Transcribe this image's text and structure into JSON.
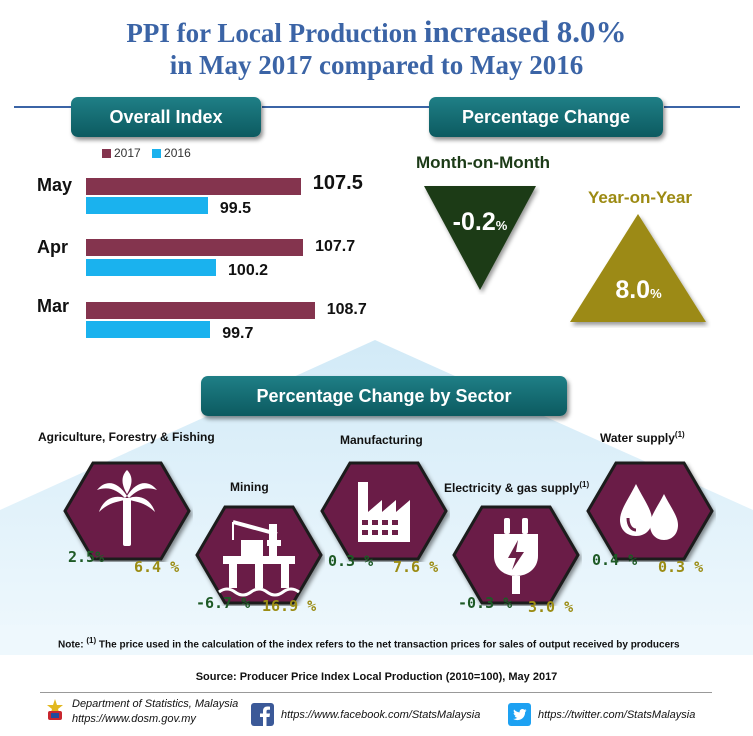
{
  "title": {
    "line1_prefix": "PPI for Local Production ",
    "line1_emph": "increased 8.0%",
    "line2": "in May 2017 compared to May 2016"
  },
  "overall_banner": "Overall Index",
  "pct_banner": "Percentage Change",
  "sector_banner": "Percentage Change by Sector",
  "mom_label": "Month-on-Month",
  "yoy_label": "Year-on-Year",
  "colors": {
    "y2017": "#84344e",
    "y2016": "#1ab2ee",
    "mom_triangle": "#1c3b17",
    "yoy_triangle": "#9c8a12",
    "hexagon": "#6b1f47",
    "banner": "#1a767c"
  },
  "chart_data": [
    {
      "type": "bar",
      "title": "Overall Index",
      "orientation": "horizontal",
      "categories": [
        "May",
        "Apr",
        "Mar"
      ],
      "series": [
        {
          "name": "2017",
          "values": [
            107.5,
            107.7,
            108.7
          ]
        },
        {
          "name": "2016",
          "values": [
            99.5,
            100.2,
            99.7
          ]
        }
      ],
      "value_labels": {
        "2017": [
          "107.5",
          "107.7",
          "108.7"
        ],
        "2016": [
          "99.5",
          "100.2",
          "99.7"
        ]
      },
      "legend": [
        "2017",
        "2016"
      ],
      "legend_position": "top-left",
      "xlim": [
        0,
        115
      ]
    },
    {
      "type": "table",
      "title": "Percentage Change",
      "items": [
        {
          "label": "Month-on-Month",
          "value": -0.2,
          "display": "-0.2",
          "unit": "%"
        },
        {
          "label": "Year-on-Year",
          "value": 8.0,
          "display": "8.0",
          "unit": "%"
        }
      ]
    },
    {
      "type": "table",
      "title": "Percentage Change by Sector",
      "sectors": [
        {
          "name": "Agriculture, Forestry & Fishing",
          "icon": "palm-tree-icon",
          "mom": "2.5%",
          "yoy": "6.4 %"
        },
        {
          "name": "Mining",
          "icon": "oil-rig-icon",
          "mom": "-6.7 %",
          "yoy": "16.9 %"
        },
        {
          "name": "Manufacturing",
          "icon": "factory-icon",
          "mom": "0.3 %",
          "yoy": "7.6 %"
        },
        {
          "name": "Electricity & gas supply",
          "note_marker": "(1)",
          "icon": "plug-icon",
          "mom": "-0.3 %",
          "yoy": "3.0 %"
        },
        {
          "name": "Water supply",
          "note_marker": "(1)",
          "icon": "water-drops-icon",
          "mom": "0.4 %",
          "yoy": "0.3 %"
        }
      ]
    }
  ],
  "note": {
    "prefix": "Note: ",
    "marker": "(1)",
    "text": " The price used in the calculation of the index refers to the net transaction prices for sales of output received by producers"
  },
  "source": "Source: Producer Price Index Local Production (2010=100), May 2017",
  "footer": {
    "org": "Department of Statistics, Malaysia",
    "website": "https://www.dosm.gov.my",
    "facebook": "https://www.facebook.com/StatsMalaysia",
    "twitter": "https://twitter.com/StatsMalaysia"
  }
}
